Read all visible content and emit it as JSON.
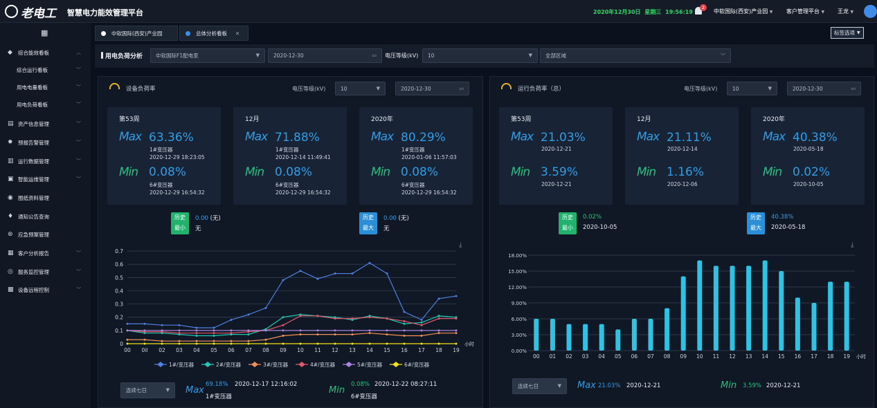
{
  "app": {
    "logo_text": "老电工",
    "title": "智慧电力能效管理平台"
  },
  "topbar": {
    "date": "2020年12月30日",
    "weekday": "星期三",
    "time": "19:56:19",
    "notif_count": "2",
    "org": "中软国际(西安)产业园",
    "platform": "客户管理平台",
    "user": "王龙"
  },
  "sidebar": {
    "items": [
      {
        "label": "综合能效看板"
      },
      {
        "label": "综合运行看板"
      },
      {
        "label": "用电电量看板"
      },
      {
        "label": "用电负荷看板"
      },
      {
        "label": "资产信息管理"
      },
      {
        "label": "预报告警管理"
      },
      {
        "label": "运行数据管理"
      },
      {
        "label": "智能运维管理"
      },
      {
        "label": "图纸资料管理"
      },
      {
        "label": "通知公告查询"
      },
      {
        "label": "应急预案管理"
      },
      {
        "label": "客户分析报告"
      },
      {
        "label": "服务监控管理"
      },
      {
        "label": "设备远程控制"
      }
    ]
  },
  "tabs": [
    {
      "label": "中软国际(西安)产业园"
    },
    {
      "label": "总体分析看板"
    }
  ],
  "tag_options": "标签选项",
  "filter": {
    "title": "用电负荷分析",
    "room": "中软国际F1配电室",
    "date": "2020-12-30",
    "voltage_label": "电压等级(kV)",
    "voltage": "10",
    "area": "全部区域"
  },
  "left_panel": {
    "title": "设备负荷率",
    "voltage_label": "电压等级(kV)",
    "voltage": "10",
    "date": "2020-12-30",
    "cards": [
      {
        "period": "第53周",
        "max_label": "Max",
        "max_val": "63.36%",
        "max_dev": "1#变压器",
        "max_time": "2020-12-29 18:23:05",
        "min_label": "Min",
        "min_val": "0.08%",
        "min_dev": "6#变压器",
        "min_time": "2020-12-29 16:54:32"
      },
      {
        "period": "12月",
        "max_label": "Max",
        "max_val": "71.88%",
        "max_dev": "1#变压器",
        "max_time": "2020-12-14 11:49:41",
        "min_label": "Min",
        "min_val": "0.08%",
        "min_dev": "6#变压器",
        "min_time": "2020-12-29 16:54:32"
      },
      {
        "period": "2020年",
        "max_label": "Max",
        "max_val": "80.29%",
        "max_dev": "1#变压器",
        "max_time": "2020-01-06 11:57:03",
        "min_label": "Min",
        "min_val": "0.08%",
        "min_dev": "6#变压器",
        "min_time": "2020-12-29 16:54:32"
      }
    ],
    "hist_min": {
      "badge_top": "历史",
      "badge_bottom": "最小",
      "value": "0.00",
      "unit": "(无)",
      "sub": "无"
    },
    "hist_max": {
      "badge_top": "历史",
      "badge_bottom": "最大",
      "value": "0.00",
      "unit": "(无)",
      "sub": "无"
    },
    "range": "连续七日",
    "bottom_max": {
      "label": "Max",
      "value": "69.18%",
      "time": "2020-12-17 12:16:02",
      "dev": "1#变压器"
    },
    "bottom_min": {
      "label": "Min",
      "value": "0.08%",
      "time": "2020-12-22 08:27:11",
      "dev": "6#变压器"
    }
  },
  "right_panel": {
    "title": "运行负荷率（总）",
    "voltage_label": "电压等级(kV)",
    "voltage": "10",
    "date": "2020-12-30",
    "cards": [
      {
        "period": "第53周",
        "max_label": "Max",
        "max_val": "21.03%",
        "max_time": "2020-12-21",
        "min_label": "Min",
        "min_val": "3.59%",
        "min_time": "2020-12-21"
      },
      {
        "period": "12月",
        "max_label": "Max",
        "max_val": "21.11%",
        "max_time": "2020-12-14",
        "min_label": "Min",
        "min_val": "1.16%",
        "min_time": "2020-12-06"
      },
      {
        "period": "2020年",
        "max_label": "Max",
        "max_val": "40.38%",
        "max_time": "2020-05-18",
        "min_label": "Min",
        "min_val": "0.02%",
        "min_time": "2020-10-05"
      }
    ],
    "hist_min": {
      "badge_top": "历史",
      "badge_bottom": "最小",
      "value": "0.02%",
      "date": "2020-10-05"
    },
    "hist_max": {
      "badge_top": "历史",
      "badge_bottom": "最大",
      "value": "40.38%",
      "date": "2020-05-18"
    },
    "range": "连续七日",
    "bottom_max": {
      "label": "Max",
      "value": "21.03%",
      "date": "2020-12-21"
    },
    "bottom_min": {
      "label": "Min",
      "value": "3.59%",
      "date": "2020-12-21"
    }
  },
  "colors": {
    "accent": "#2f9ee6",
    "green": "#22c37c",
    "bar": "#2fc2e2",
    "bg": "#0b111c"
  },
  "chart_data": [
    {
      "type": "line",
      "x": [
        "00",
        "0il",
        "02",
        "03",
        "04",
        "05",
        "06",
        "07",
        "08",
        "09",
        "10",
        "11",
        "12",
        "13",
        "14",
        "15",
        "16",
        "17",
        "18",
        "19"
      ],
      "x_unit": "小时",
      "ylim": [
        0,
        0.7
      ],
      "yticks": [
        "0",
        "0.1",
        "0.2",
        "0.3",
        "0.4",
        "0.5",
        "0.6",
        "0.7"
      ],
      "series": [
        {
          "name": "1#/变压器",
          "color": "#4f7fe0",
          "values": [
            0.15,
            0.15,
            0.14,
            0.14,
            0.12,
            0.12,
            0.18,
            0.22,
            0.27,
            0.48,
            0.55,
            0.49,
            0.53,
            0.53,
            0.61,
            0.53,
            0.24,
            0.18,
            0.34,
            0.36
          ]
        },
        {
          "name": "2#/变压器",
          "color": "#21c9b4",
          "values": [
            0.1,
            0.08,
            0.08,
            0.07,
            0.06,
            0.06,
            0.07,
            0.07,
            0.11,
            0.2,
            0.22,
            0.21,
            0.2,
            0.18,
            0.21,
            0.19,
            0.15,
            0.16,
            0.21,
            0.2
          ]
        },
        {
          "name": "3#/变压器",
          "color": "#f0905a",
          "values": [
            0.03,
            0.03,
            0.02,
            0.02,
            0.02,
            0.02,
            0.02,
            0.02,
            0.03,
            0.06,
            0.07,
            0.07,
            0.07,
            0.07,
            0.08,
            0.07,
            0.06,
            0.06,
            0.08,
            0.08
          ]
        },
        {
          "name": "4#/变压器",
          "color": "#e05a6a",
          "values": [
            0.1,
            0.09,
            0.09,
            0.08,
            0.08,
            0.08,
            0.08,
            0.09,
            0.1,
            0.14,
            0.21,
            0.21,
            0.19,
            0.19,
            0.2,
            0.19,
            0.17,
            0.14,
            0.19,
            0.19
          ]
        },
        {
          "name": "5#/变压器",
          "color": "#a985e0",
          "values": [
            0.1,
            0.1,
            0.1,
            0.1,
            0.1,
            0.1,
            0.1,
            0.1,
            0.1,
            0.1,
            0.1,
            0.1,
            0.1,
            0.1,
            0.1,
            0.1,
            0.1,
            0.1,
            0.1,
            0.1
          ]
        },
        {
          "name": "6#/变压器",
          "color": "#f2e21a",
          "values": [
            0.0,
            0.0,
            0.0,
            0.0,
            0.0,
            0.0,
            0.0,
            0.0,
            0.0,
            0.0,
            0.0,
            0.0,
            0.0,
            0.0,
            0.0,
            0.0,
            0.0,
            0.0,
            0.0,
            0.0
          ]
        }
      ]
    },
    {
      "type": "bar",
      "categories": [
        "00",
        "01",
        "02",
        "03",
        "04",
        "05",
        "06",
        "07",
        "08",
        "09",
        "10",
        "11",
        "12",
        "13",
        "14",
        "15",
        "16",
        "17",
        "18",
        "19"
      ],
      "x_unit": "小时",
      "ylim": [
        0,
        18
      ],
      "yticks": [
        "0.00%",
        "3.00%",
        "6.00%",
        "9.00%",
        "12.00%",
        "15.00%",
        "18.00%"
      ],
      "values": [
        6,
        6,
        5,
        5,
        5,
        4,
        6,
        6,
        8,
        14,
        17,
        16,
        16,
        16,
        17,
        15,
        10,
        9,
        13,
        13
      ]
    }
  ]
}
